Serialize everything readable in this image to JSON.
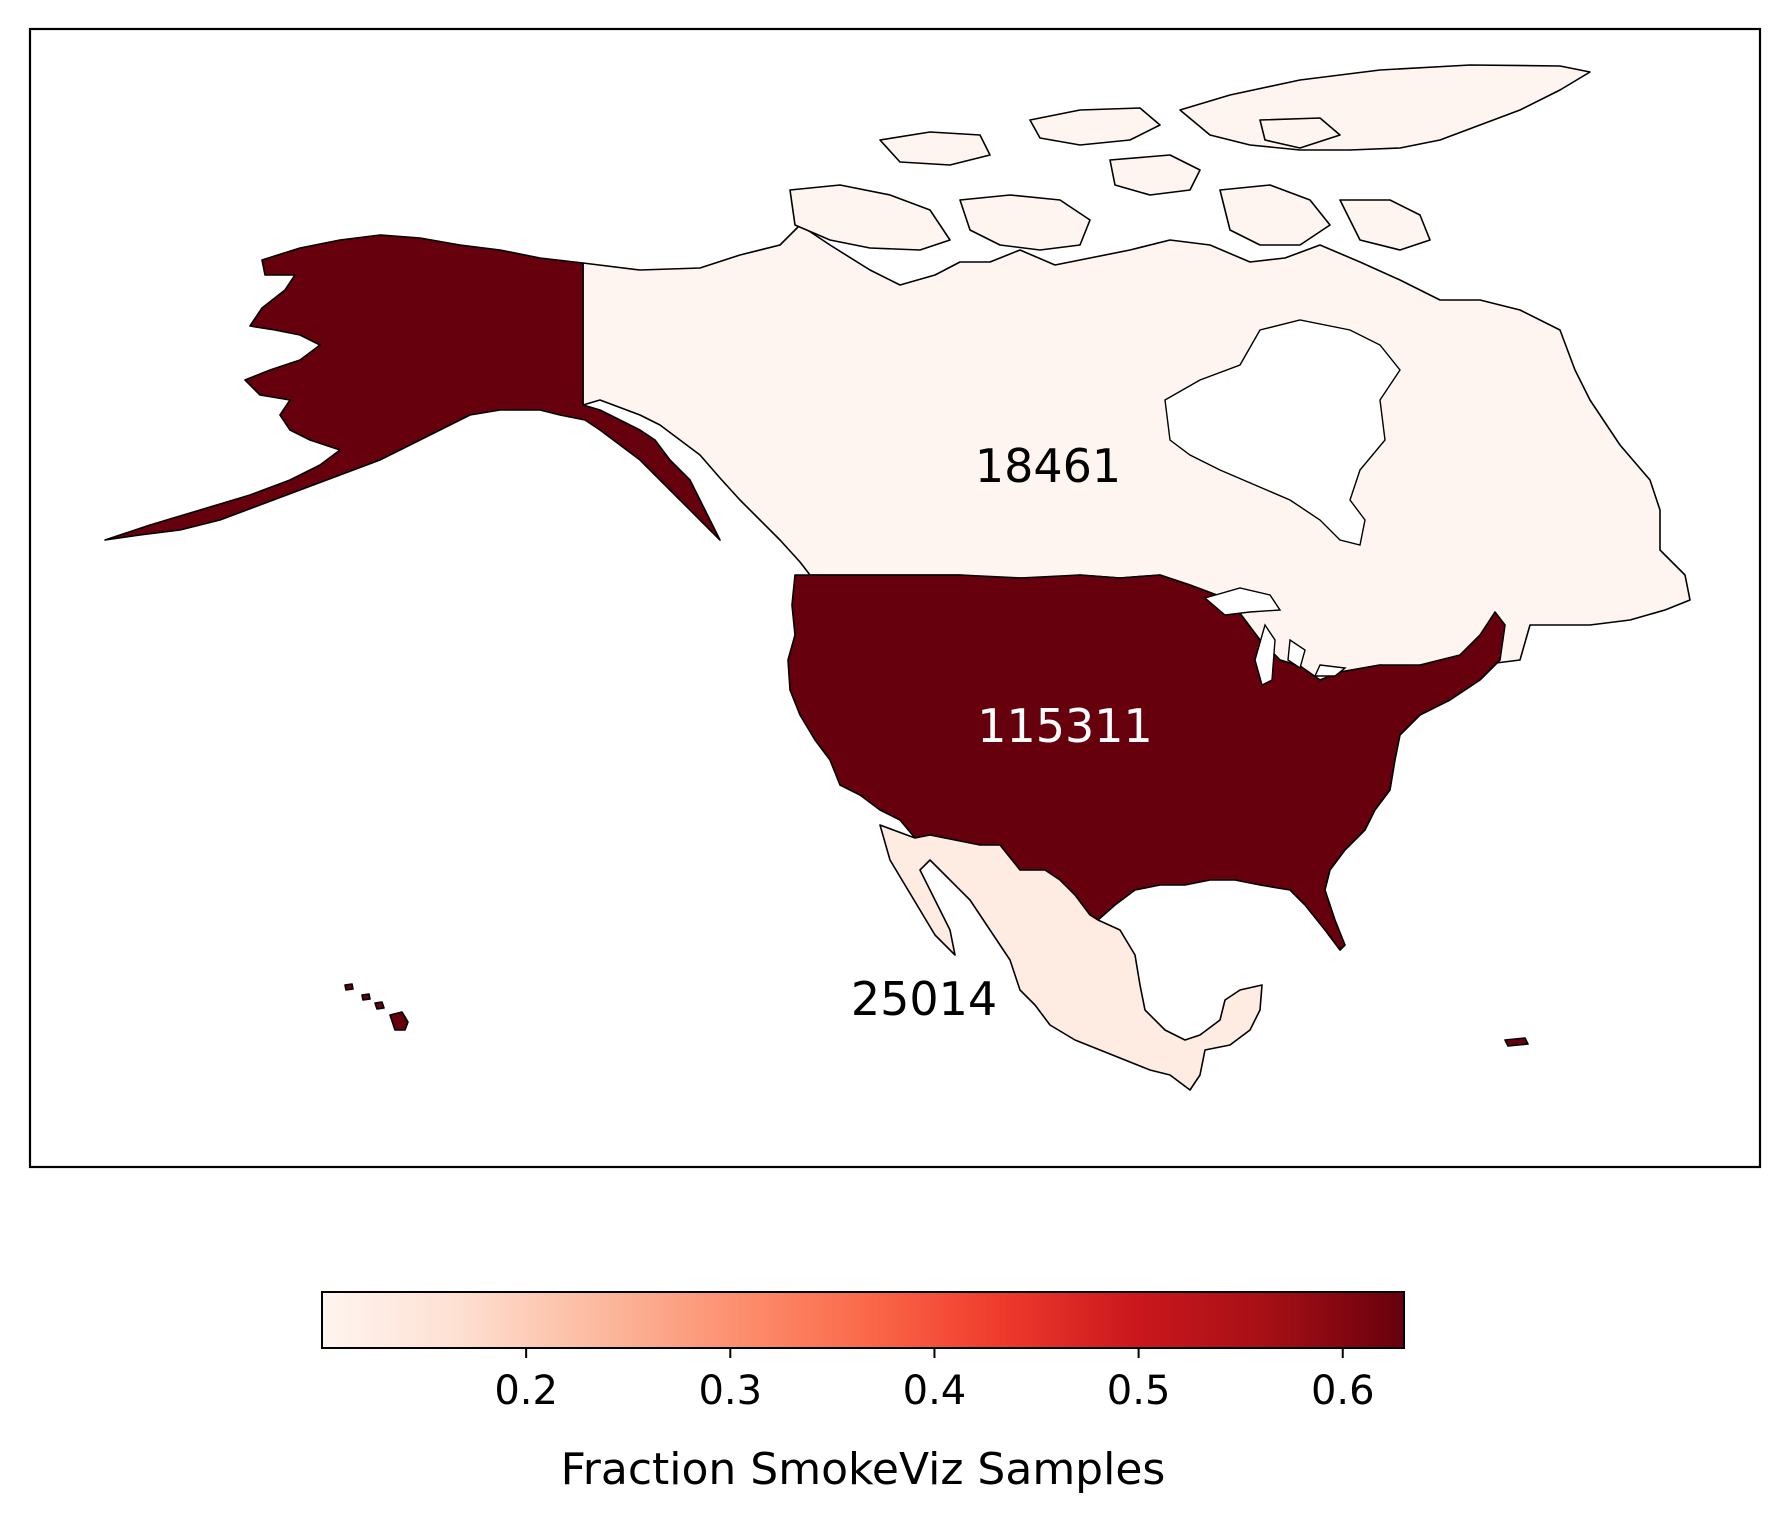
{
  "regions": [
    {
      "name": "Canada",
      "value": 0.012,
      "count_label": "18461",
      "fill": "#fff5f0",
      "label_color": "#000000"
    },
    {
      "name": "United States",
      "value": 0.63,
      "count_label": "115311",
      "fill": "#67000d",
      "label_color": "#ffffff"
    },
    {
      "name": "Mexico",
      "value": 0.12,
      "count_label": "25014",
      "fill": "#feebe2",
      "label_color": "#000000"
    }
  ],
  "colorbar": {
    "label": "Fraction SmokeViz Samples",
    "colormap": "Reds",
    "range": [
      0.1,
      0.63
    ],
    "ticks": [
      "0.2",
      "0.3",
      "0.4",
      "0.5",
      "0.6"
    ],
    "orientation": "horizontal",
    "placement": "bottom"
  }
}
